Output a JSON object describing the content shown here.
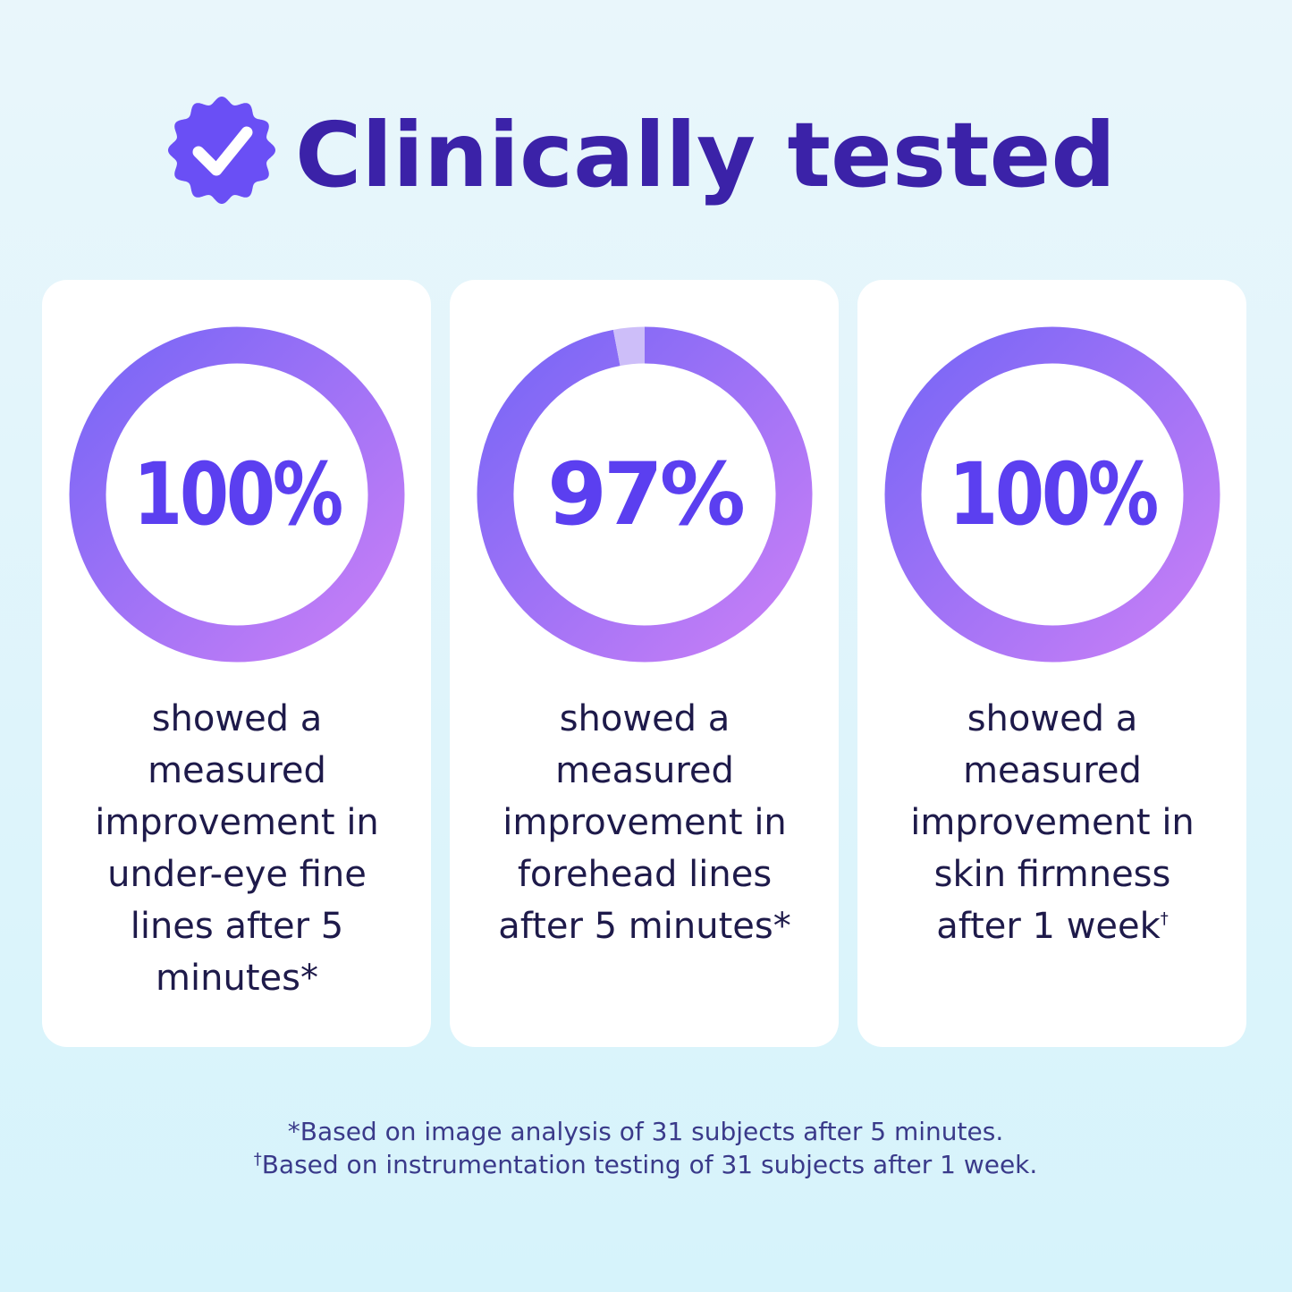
{
  "title": "Clinically tested",
  "chart_data": [
    {
      "type": "donut",
      "values": [
        100,
        0
      ],
      "value_labels": [
        "100%",
        null
      ],
      "gradient": [
        "#7866f6",
        "#c87ff6"
      ],
      "remainder_color": "#cdbef9",
      "caption": [
        "showed a",
        "measured",
        "improvement in",
        "under-eye fine",
        "lines after 5",
        "minutes*"
      ]
    },
    {
      "type": "donut",
      "values": [
        97,
        3
      ],
      "value_labels": [
        "97%",
        null
      ],
      "gradient": [
        "#7866f6",
        "#c87ff6"
      ],
      "remainder_color": "#cdbef9",
      "caption": [
        "showed a",
        "measured",
        "improvement in",
        "forehead lines",
        "after 5 minutes*"
      ]
    },
    {
      "type": "donut",
      "values": [
        100,
        0
      ],
      "value_labels": [
        "100%",
        null
      ],
      "gradient": [
        "#7866f6",
        "#c87ff6"
      ],
      "remainder_color": "#cdbef9",
      "caption": [
        "showed a",
        "measured",
        "improvement in",
        "skin firmness",
        "after 1 week"
      ],
      "caption_mark": "†"
    }
  ],
  "footnotes": [
    {
      "text": "*Based on image analysis of 31 subjects after 5 minutes."
    },
    {
      "marker": "†",
      "text": "Based on instrumentation testing of 31 subjects after 1 week."
    }
  ]
}
